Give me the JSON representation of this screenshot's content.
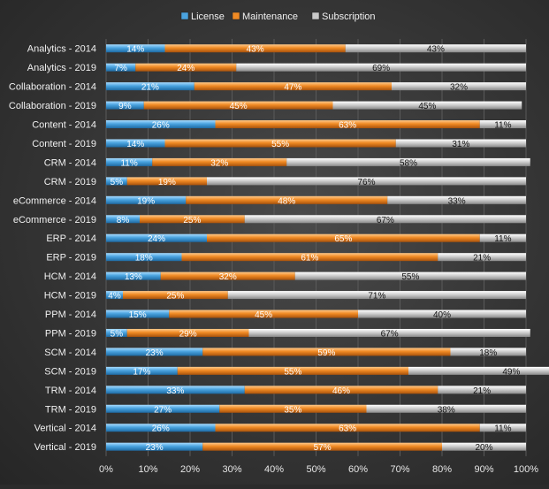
{
  "chart_data": {
    "type": "bar",
    "orientation": "horizontal",
    "stacked": "100%",
    "title": "",
    "xlabel": "",
    "ylabel": "",
    "xlim": [
      0,
      100
    ],
    "x_ticks": [
      "0%",
      "10%",
      "20%",
      "30%",
      "40%",
      "50%",
      "60%",
      "70%",
      "80%",
      "90%",
      "100%"
    ],
    "grid": true,
    "legend_position": "top",
    "categories": [
      "Analytics - 2014",
      "Analytics - 2019",
      "Collaboration - 2014",
      "Collaboration - 2019",
      "Content - 2014",
      "Content - 2019",
      "CRM - 2014",
      "CRM - 2019",
      "eCommerce - 2014",
      "eCommerce - 2019",
      "ERP - 2014",
      "ERP - 2019",
      "HCM - 2014",
      "HCM - 2019",
      "PPM - 2014",
      "PPM - 2019",
      "SCM - 2014",
      "SCM - 2019",
      "TRM - 2014",
      "TRM - 2019",
      "Vertical - 2014",
      "Vertical - 2019"
    ],
    "series": [
      {
        "name": "License",
        "color": "#4aa3df",
        "values": [
          14,
          7,
          21,
          9,
          26,
          14,
          11,
          5,
          19,
          8,
          24,
          18,
          13,
          4,
          15,
          5,
          23,
          17,
          33,
          27,
          26,
          23
        ]
      },
      {
        "name": "Maintenance",
        "color": "#f08a24",
        "values": [
          43,
          24,
          47,
          45,
          63,
          55,
          32,
          19,
          48,
          25,
          65,
          61,
          32,
          25,
          45,
          29,
          59,
          55,
          46,
          35,
          63,
          57
        ]
      },
      {
        "name": "Subscription",
        "color": "#c8c8c8",
        "values": [
          43,
          69,
          32,
          45,
          11,
          31,
          58,
          76,
          33,
          67,
          11,
          21,
          55,
          71,
          40,
          67,
          18,
          49,
          21,
          38,
          11,
          20
        ]
      }
    ]
  }
}
